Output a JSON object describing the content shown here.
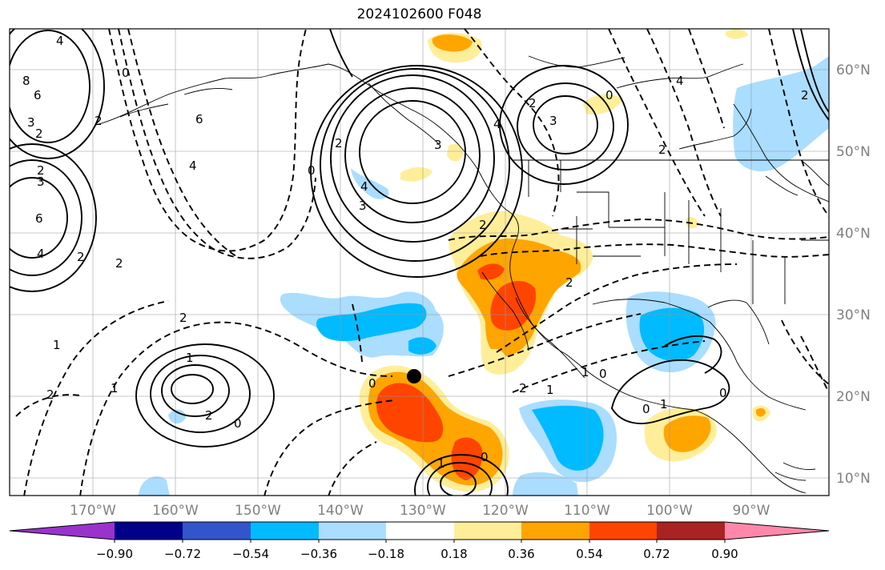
{
  "title": "2024102600 F048",
  "lon_labels": [
    "170°W",
    "160°W",
    "150°W",
    "140°W",
    "130°W",
    "120°W",
    "110°W",
    "100°W",
    "90°W"
  ],
  "lat_labels": [
    "60°N",
    "50°N",
    "40°N",
    "30°N",
    "20°N",
    "10°N"
  ],
  "colorbar": {
    "colors": [
      "#9933cc",
      "#000088",
      "#3355cc",
      "#00bbff",
      "#aaddff",
      "#ffffff",
      "#ffee99",
      "#ffa500",
      "#ff4400",
      "#aa2222",
      "#ff88aa"
    ],
    "tick_labels": [
      "−0.90",
      "−0.72",
      "−0.54",
      "−0.36",
      "−0.18",
      "0.18",
      "0.36",
      "0.54",
      "0.72",
      "0.90"
    ]
  },
  "contour_labels": [
    {
      "text": "4"
    },
    {
      "text": "8"
    },
    {
      "text": "6"
    },
    {
      "text": "3"
    },
    {
      "text": "2"
    },
    {
      "text": "2"
    },
    {
      "text": "3"
    },
    {
      "text": "6"
    },
    {
      "text": "4"
    },
    {
      "text": "2"
    },
    {
      "text": "2"
    },
    {
      "text": "6"
    },
    {
      "text": "4"
    },
    {
      "text": "2"
    },
    {
      "text": "0"
    },
    {
      "text": "2"
    },
    {
      "text": "1"
    },
    {
      "text": "2"
    },
    {
      "text": "1"
    },
    {
      "text": "1"
    },
    {
      "text": "2"
    },
    {
      "text": "0"
    },
    {
      "text": "4"
    },
    {
      "text": "3"
    },
    {
      "text": "2"
    },
    {
      "text": "3"
    },
    {
      "text": "0"
    },
    {
      "text": "2"
    },
    {
      "text": "4"
    },
    {
      "text": "2"
    },
    {
      "text": "3"
    },
    {
      "text": "2"
    },
    {
      "text": "4"
    },
    {
      "text": "0"
    },
    {
      "text": "2"
    },
    {
      "text": "2"
    },
    {
      "text": "1"
    },
    {
      "text": "0"
    },
    {
      "text": "0"
    },
    {
      "text": "0"
    },
    {
      "text": "1"
    },
    {
      "text": "2"
    },
    {
      "text": "1"
    },
    {
      "text": "0"
    },
    {
      "text": "1"
    },
    {
      "text": "0"
    }
  ],
  "colors": {
    "frame": "#000000",
    "grid": "#999999",
    "axis_text": "#808080",
    "contour": "#000000",
    "coast": "#000000"
  }
}
